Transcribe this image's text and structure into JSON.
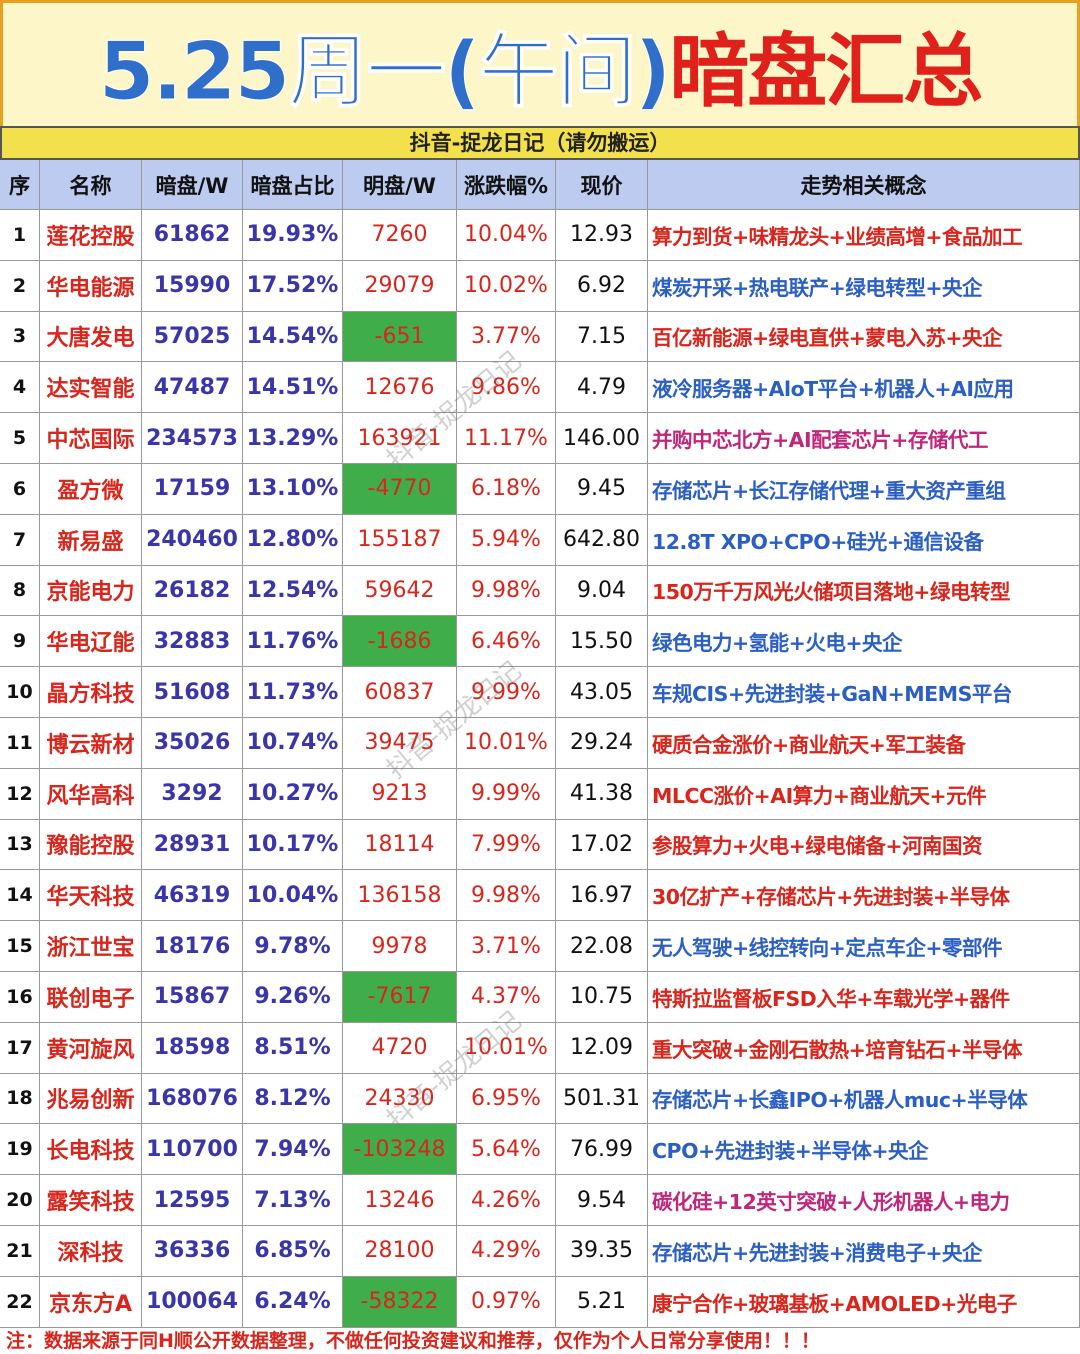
{
  "title": {
    "part1": "5.25周一(午间)",
    "part2": "暗盘汇总"
  },
  "subtitle": "抖音-捉龙日记（请勿搬运）",
  "watermark": "抖音-捉龙日记",
  "table": {
    "header": [
      "序",
      "名称",
      "暗盘/W",
      "暗盘占比",
      "明盘/W",
      "涨跌幅%",
      "现价",
      "走势相关概念"
    ],
    "rows": [
      [
        "1",
        "莲花控股",
        "61862",
        "19.93%",
        "7260",
        "10.04%",
        "12.93",
        "算力到货+味精龙头+业绩高增+食品加工"
      ],
      [
        "2",
        "华电能源",
        "15990",
        "17.52%",
        "29079",
        "10.02%",
        "6.92",
        "煤炭开采+热电联产+绿电转型+央企"
      ],
      [
        "3",
        "大唐发电",
        "57025",
        "14.54%",
        "-651",
        "3.77%",
        "7.15",
        "百亿新能源+绿电直供+蒙电入苏+央企"
      ],
      [
        "4",
        "达实智能",
        "47487",
        "14.51%",
        "12676",
        "9.86%",
        "4.79",
        "液冷服务器+AloT平台+机器人+AI应用"
      ],
      [
        "5",
        "中芯国际",
        "234573",
        "13.29%",
        "163921",
        "11.17%",
        "146.00",
        "并购中芯北方+AI配套芯片+存储代工"
      ],
      [
        "6",
        "盈方微",
        "17159",
        "13.10%",
        "-4770",
        "6.18%",
        "9.45",
        "存储芯片+长江存储代理+重大资产重组"
      ],
      [
        "7",
        "新易盛",
        "240460",
        "12.80%",
        "155187",
        "5.94%",
        "642.80",
        "12.8T XPO+CPO+硅光+通信设备"
      ],
      [
        "8",
        "京能电力",
        "26182",
        "12.54%",
        "59642",
        "9.98%",
        "9.04",
        "150万千万风光火储项目落地+绿电转型"
      ],
      [
        "9",
        "华电辽能",
        "32883",
        "11.76%",
        "-1686",
        "6.46%",
        "15.50",
        "绿色电力+氢能+火电+央企"
      ],
      [
        "10",
        "晶方科技",
        "51608",
        "11.73%",
        "60837",
        "9.99%",
        "43.05",
        "车规CIS+先进封装+GaN+MEMS平台"
      ],
      [
        "11",
        "博云新材",
        "35026",
        "10.74%",
        "39475",
        "10.01%",
        "29.24",
        "硬质合金涨价+商业航天+军工装备"
      ],
      [
        "12",
        "风华高科",
        "3292",
        "10.27%",
        "9213",
        "9.99%",
        "41.38",
        "MLCC涨价+AI算力+商业航天+元件"
      ],
      [
        "13",
        "豫能控股",
        "28931",
        "10.17%",
        "18114",
        "7.99%",
        "17.02",
        "参股算力+火电+绿电储备+河南国资"
      ],
      [
        "14",
        "华天科技",
        "46319",
        "10.04%",
        "136158",
        "9.98%",
        "16.97",
        "30亿扩产+存储芯片+先进封装+半导体"
      ],
      [
        "15",
        "浙江世宝",
        "18176",
        "9.78%",
        "9978",
        "3.71%",
        "22.08",
        "无人驾驶+线控转向+定点车企+零部件"
      ],
      [
        "16",
        "联创电子",
        "15867",
        "9.26%",
        "-7617",
        "4.37%",
        "10.75",
        "特斯拉监督板FSD入华+车载光学+器件"
      ],
      [
        "17",
        "黄河旋风",
        "18598",
        "8.51%",
        "4720",
        "10.01%",
        "12.09",
        "重大突破+金刚石散热+培育钻石+半导体"
      ],
      [
        "18",
        "兆易创新",
        "168076",
        "8.12%",
        "24330",
        "6.95%",
        "501.31",
        "存储芯片+长鑫IPO+机器人muc+半导体"
      ],
      [
        "19",
        "长电科技",
        "110700",
        "7.94%",
        "-103248",
        "5.64%",
        "76.99",
        "CPO+先进封装+半导体+央企"
      ],
      [
        "20",
        "露笑科技",
        "12595",
        "7.13%",
        "13246",
        "4.26%",
        "9.54",
        "碳化硅+12英寸突破+人形机器人+电力"
      ],
      [
        "21",
        "深科技",
        "36336",
        "6.85%",
        "28100",
        "4.29%",
        "39.35",
        "存储芯片+先进封装+消费电子+央企"
      ],
      [
        "22",
        "京东方A",
        "100064",
        "6.24%",
        "-58322",
        "0.97%",
        "5.21",
        "康宁合作+玻璃基板+AMOLED+光电子"
      ]
    ],
    "concept_colors": [
      "#d8261c",
      "#2b5fc4",
      "#d8261c",
      "#2b5fc4",
      "#c0267a",
      "#2b5fc4",
      "#2b5fc4",
      "#d8261c",
      "#2b5fc4",
      "#2b5fc4",
      "#d8261c",
      "#d8261c",
      "#d8261c",
      "#d8261c",
      "#2b5fc4",
      "#d8261c",
      "#d8261c",
      "#2b5fc4",
      "#2b5fc4",
      "#c0267a",
      "#2b5fc4",
      "#d8261c"
    ]
  },
  "footer": "注：数据来源于同H顺公开数据整理，不做任何投资建议和推荐，仅作为个人日常分享使用！！！"
}
